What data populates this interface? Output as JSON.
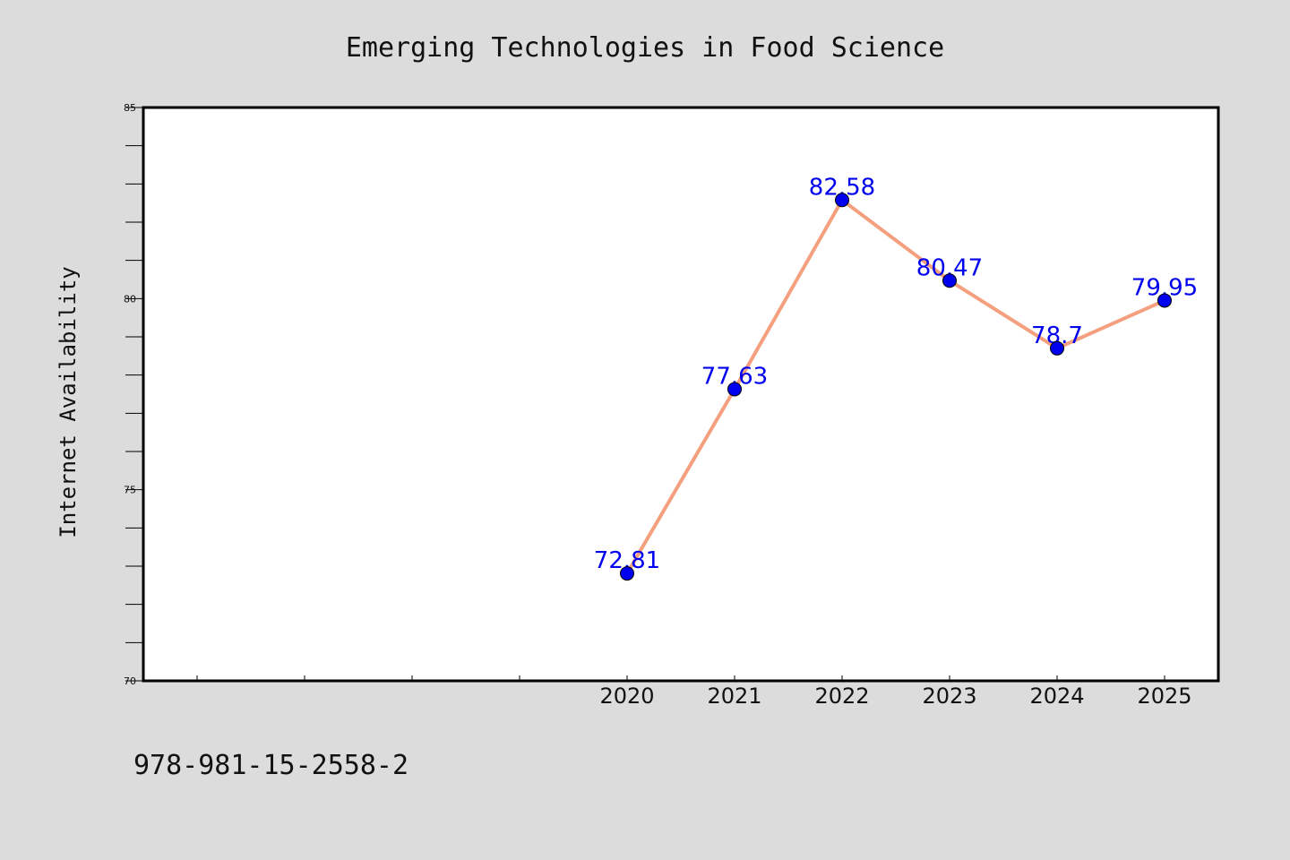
{
  "chart_data": {
    "type": "line",
    "title": "Emerging Technologies in Food Science",
    "xlabel": "",
    "ylabel": "Internet Availability",
    "x": [
      "2020",
      "2021",
      "2022",
      "2023",
      "2024",
      "2025"
    ],
    "series": [
      {
        "values": [
          72.81,
          77.63,
          82.58,
          80.47,
          78.7,
          79.95
        ],
        "labels": [
          "72.81",
          "77.63",
          "82.58",
          "80.47",
          "78.7",
          "79.95"
        ],
        "line_color": "#f4a07f",
        "marker_color": "#0000ee",
        "label_color": "#0000ee"
      }
    ],
    "ylim": [
      70,
      85
    ],
    "yticks": [
      70,
      75,
      80,
      85
    ],
    "ytick_labels": [
      "70",
      "75",
      "80",
      "85"
    ],
    "grid": false,
    "legend": "none"
  },
  "footer": {
    "text": "978-981-15-2558-2"
  },
  "colors": {
    "background": "#dcdcdc",
    "plot_background": "#ffffff",
    "axes": "#000000"
  }
}
